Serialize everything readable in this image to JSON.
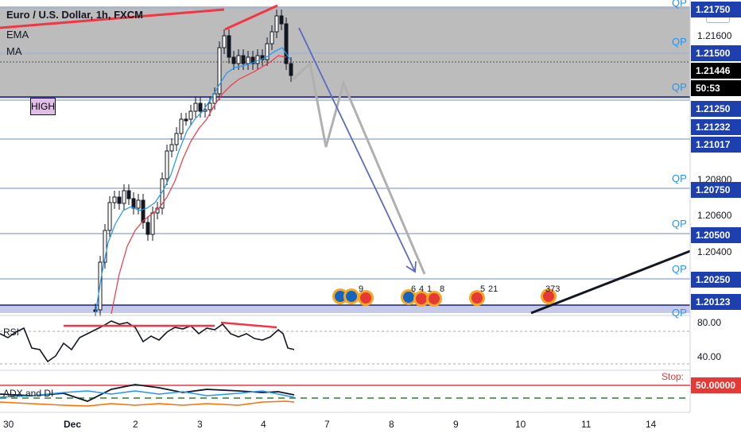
{
  "header": {
    "title": "Euro / U.S. Dollar, 1h, FXCM",
    "ema_label": "EMA",
    "ma_label": "MA",
    "currency": "USD"
  },
  "annotations": {
    "high_label": "HIGH",
    "qp_labels": [
      "QP",
      "QP",
      "QP",
      "QP",
      "QP",
      "QP",
      "QP"
    ],
    "stop_label": "Stop:"
  },
  "price_scale": {
    "plain_ticks": [
      "1.21600",
      "1.20600",
      "1.20400"
    ],
    "partial_ticks": [
      "1.20800"
    ],
    "level_tags": [
      {
        "label": "1.21750",
        "color": "#1e40af"
      },
      {
        "label": "1.21500",
        "color": "#1e40af"
      },
      {
        "label": "1.21446",
        "color": "#000000"
      },
      {
        "label": "50:53",
        "color": "#000000"
      },
      {
        "label": "1.21250",
        "color": "#1e40af"
      },
      {
        "label": "1.21232",
        "color": "#1e40af"
      },
      {
        "label": "1.21017",
        "color": "#1e40af"
      },
      {
        "label": "1.20750",
        "color": "#1e40af"
      },
      {
        "label": "1.20500",
        "color": "#1e40af"
      },
      {
        "label": "1.20250",
        "color": "#1e40af"
      },
      {
        "label": "1.20123",
        "color": "#1e40af"
      }
    ]
  },
  "indicators": {
    "rsi_label": "RSI",
    "rsi_ticks": [
      "80.00",
      "40.00"
    ],
    "adx_label": "ADX and DI",
    "adx_value": "50.00000",
    "adx_value_color": "#e53935"
  },
  "time_axis": [
    "30",
    "Dec",
    "2",
    "3",
    "4",
    "7",
    "8",
    "9",
    "10",
    "11",
    "14"
  ],
  "event_badges": [
    "9",
    "6",
    "4",
    "1",
    "8",
    "5",
    "21",
    "373"
  ]
}
